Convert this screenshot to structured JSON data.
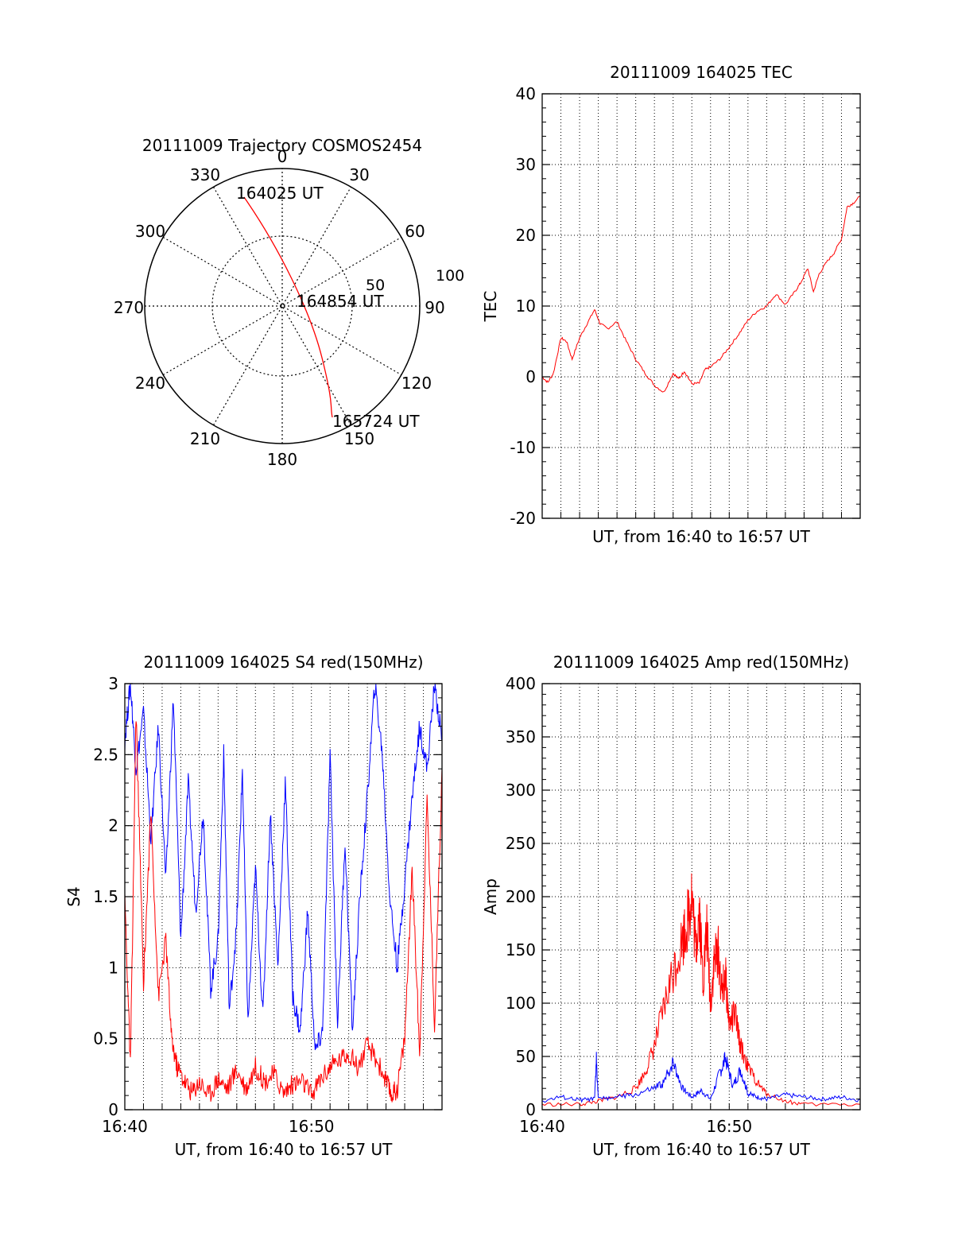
{
  "colors": {
    "red": "#ff0000",
    "blue": "#0000ff",
    "axis": "#000000",
    "grid": "#000000"
  },
  "polar": {
    "title": "20111009 Trajectory COSMOS2454",
    "azimuth_labels": [
      "0",
      "30",
      "60",
      "90",
      "120",
      "150",
      "180",
      "210",
      "240",
      "270",
      "300",
      "330"
    ],
    "ring_labels": [
      "50",
      "100"
    ],
    "annotations": {
      "start": "164025 UT",
      "mid": "164854 UT",
      "end": "165724 UT"
    }
  },
  "chart_data": [
    {
      "type": "line",
      "title": "20111009 164025 TEC",
      "xlabel": "UT, from 16:40 to 16:57 UT",
      "ylabel": "TEC",
      "xlim": [
        0,
        17
      ],
      "ylim": [
        -20,
        40
      ],
      "yticks": [
        "-20",
        "-10",
        "0",
        "10",
        "20",
        "30",
        "40"
      ],
      "xticklabels": [],
      "grid": true,
      "series": [
        {
          "color": "#ff0000",
          "x": [
            0,
            0.3,
            0.6,
            1.0,
            1.3,
            1.6,
            2.0,
            2.4,
            2.8,
            3.1,
            3.5,
            4.0,
            4.5,
            5.0,
            5.5,
            6.0,
            6.5,
            7.0,
            7.3,
            7.6,
            8.0,
            8.4,
            8.7,
            9.0,
            9.5,
            10.0,
            10.5,
            11.0,
            11.5,
            12.0,
            12.5,
            13.0,
            13.5,
            13.8,
            14.2,
            14.5,
            14.8,
            15.2,
            15.6,
            16.0,
            16.3,
            16.6,
            17.0
          ],
          "y": [
            0,
            -0.8,
            0.5,
            5.5,
            5,
            2.5,
            5.5,
            7.5,
            9.5,
            7.5,
            6.8,
            7.8,
            5,
            2.5,
            0.5,
            -1.2,
            -2.2,
            0.5,
            -0.3,
            0.8,
            -1.0,
            -0.9,
            1.0,
            1.4,
            2.5,
            4.2,
            6.0,
            8.0,
            9.3,
            10.0,
            11.7,
            10.2,
            12.0,
            13.2,
            15.3,
            12.0,
            14.5,
            16.2,
            17.5,
            19.5,
            24.0,
            24.5,
            25.5
          ]
        }
      ]
    },
    {
      "type": "line",
      "title": "20111009 164025 S4 red(150MHz)",
      "xlabel": "UT, from 16:40 to 16:57 UT",
      "ylabel": "S4",
      "xlim": [
        0,
        17
      ],
      "ylim": [
        0,
        3
      ],
      "yticks": [
        "0",
        "0.5",
        "1",
        "1.5",
        "2",
        "2.5",
        "3"
      ],
      "xticklabels": [
        {
          "x": 0,
          "label": "16:40"
        },
        {
          "x": 10,
          "label": "16:50"
        }
      ],
      "grid": true,
      "series": [
        {
          "color": "#0000ff",
          "x": [
            0,
            0.3,
            0.6,
            1.0,
            1.4,
            1.8,
            2.2,
            2.6,
            3.0,
            3.4,
            3.8,
            4.2,
            4.6,
            5.0,
            5.3,
            5.6,
            6.0,
            6.3,
            6.6,
            7.0,
            7.4,
            7.8,
            8.2,
            8.6,
            9.0,
            9.4,
            9.8,
            10.2,
            10.6,
            11.0,
            11.4,
            11.8,
            12.2,
            12.6,
            13.0,
            13.4,
            13.8,
            14.2,
            14.6,
            15.0,
            15.4,
            15.8,
            16.2,
            16.6,
            17.0
          ],
          "y": [
            2.6,
            3.0,
            2.4,
            2.8,
            1.9,
            2.7,
            1.6,
            2.9,
            1.2,
            2.3,
            1.4,
            2.1,
            0.85,
            1.2,
            2.5,
            0.7,
            1.3,
            2.4,
            0.6,
            1.7,
            0.65,
            2.1,
            1.0,
            2.3,
            0.8,
            0.55,
            1.4,
            0.4,
            0.55,
            2.5,
            0.6,
            1.9,
            0.55,
            1.5,
            2.2,
            3.0,
            2.5,
            1.5,
            1.0,
            1.6,
            2.2,
            2.7,
            2.4,
            3.0,
            2.6
          ]
        },
        {
          "color": "#ff0000",
          "x": [
            0,
            0.3,
            0.6,
            1.0,
            1.4,
            1.8,
            2.2,
            2.5,
            2.8,
            3.2,
            3.6,
            4.0,
            4.5,
            5.0,
            5.5,
            6.0,
            6.5,
            7.0,
            7.5,
            8.0,
            8.5,
            9.0,
            9.5,
            10.0,
            10.5,
            11.0,
            11.5,
            12.0,
            12.5,
            13.0,
            13.5,
            14.0,
            14.3,
            14.6,
            15.0,
            15.4,
            15.8,
            16.2,
            16.6,
            17.0
          ],
          "y": [
            1.5,
            0.3,
            2.8,
            0.9,
            2.1,
            0.8,
            1.2,
            0.5,
            0.3,
            0.2,
            0.12,
            0.2,
            0.1,
            0.22,
            0.15,
            0.28,
            0.15,
            0.3,
            0.2,
            0.25,
            0.12,
            0.18,
            0.2,
            0.1,
            0.22,
            0.3,
            0.35,
            0.4,
            0.3,
            0.45,
            0.35,
            0.2,
            0.1,
            0.15,
            0.5,
            1.7,
            0.4,
            2.2,
            0.6,
            2.4
          ]
        }
      ]
    },
    {
      "type": "line",
      "title": "20111009 164025 Amp red(150MHz)",
      "xlabel": "UT, from 16:40 to 16:57 UT",
      "ylabel": "Amp",
      "xlim": [
        0,
        17
      ],
      "ylim": [
        0,
        400
      ],
      "yticks": [
        "0",
        "50",
        "100",
        "150",
        "200",
        "250",
        "300",
        "350",
        "400"
      ],
      "xticklabels": [
        {
          "x": 0,
          "label": "16:40"
        },
        {
          "x": 10,
          "label": "16:50"
        }
      ],
      "grid": true,
      "series": [
        {
          "color": "#ff0000",
          "x": [
            0,
            2.0,
            3.0,
            4.0,
            5.0,
            5.5,
            6.0,
            6.5,
            7.0,
            7.5,
            7.8,
            8.0,
            8.2,
            8.4,
            8.6,
            8.8,
            9.0,
            9.2,
            9.4,
            9.6,
            9.8,
            10.0,
            10.3,
            10.6,
            11.0,
            11.5,
            12.0,
            13.0,
            14.0,
            17.0
          ],
          "y": [
            5,
            5,
            8,
            12,
            20,
            35,
            60,
            95,
            130,
            160,
            180,
            205,
            150,
            190,
            120,
            170,
            100,
            140,
            150,
            110,
            125,
            80,
            90,
            60,
            40,
            25,
            15,
            8,
            5,
            5
          ]
        },
        {
          "color": "#0000ff",
          "x": [
            0,
            1.0,
            2.0,
            2.8,
            2.9,
            3.0,
            4.0,
            5.0,
            6.0,
            6.5,
            7.0,
            7.5,
            8.0,
            8.5,
            9.0,
            9.5,
            9.8,
            10.2,
            10.6,
            11.0,
            11.5,
            12.0,
            13.0,
            14.0,
            15.0,
            16.0,
            17.0
          ],
          "y": [
            8,
            12,
            9,
            10,
            48,
            10,
            12,
            14,
            20,
            25,
            45,
            20,
            12,
            18,
            10,
            35,
            48,
            22,
            38,
            15,
            12,
            10,
            14,
            12,
            10,
            12,
            9
          ]
        }
      ]
    }
  ]
}
